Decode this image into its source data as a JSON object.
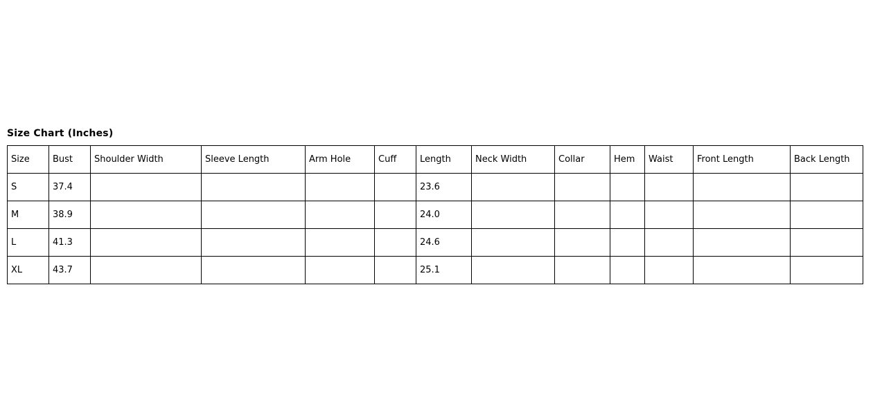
{
  "chart_data": {
    "type": "table",
    "title": "Size Chart (Inches)",
    "columns": [
      "Size",
      "Bust",
      "Shoulder Width",
      "Sleeve Length",
      "Arm Hole",
      "Cuff",
      "Length",
      "Neck Width",
      "Collar",
      "Hem",
      "Waist",
      "Front Length",
      "Back Length"
    ],
    "rows": [
      [
        "S",
        "37.4",
        "",
        "",
        "",
        "",
        "23.6",
        "",
        "",
        "",
        "",
        "",
        ""
      ],
      [
        "M",
        "38.9",
        "",
        "",
        "",
        "",
        "24.0",
        "",
        "",
        "",
        "",
        "",
        ""
      ],
      [
        "L",
        "41.3",
        "",
        "",
        "",
        "",
        "24.6",
        "",
        "",
        "",
        "",
        "",
        ""
      ],
      [
        "XL",
        "43.7",
        "",
        "",
        "",
        "",
        "25.1",
        "",
        "",
        "",
        "",
        "",
        ""
      ]
    ]
  },
  "colors": {
    "text": "#000000",
    "border": "#000000",
    "background": "#ffffff"
  }
}
